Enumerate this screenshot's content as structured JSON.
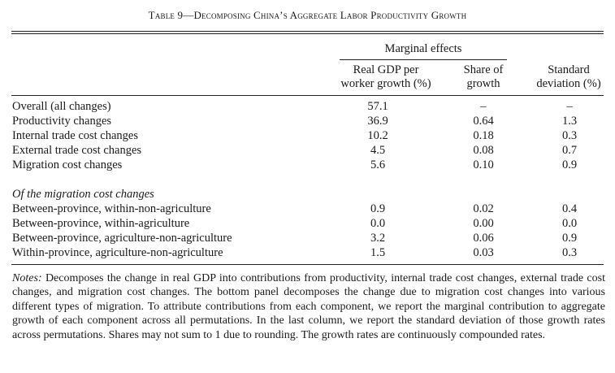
{
  "table": {
    "title": "Table 9—Decomposing China’s Aggregate Labor Productivity Growth",
    "group_header": "Marginal effects",
    "columns": {
      "col1": [
        "Real GDP per",
        "worker growth (%)"
      ],
      "col2": [
        "Share of",
        "growth"
      ],
      "col3": [
        "Standard",
        "deviation (%)"
      ]
    },
    "top_panel": [
      {
        "label": "Overall (all changes)",
        "gdp": "57.1",
        "share": "–",
        "sd": "–"
      },
      {
        "label": "Productivity changes",
        "gdp": "36.9",
        "share": "0.64",
        "sd": "1.3"
      },
      {
        "label": "Internal trade cost changes",
        "gdp": "10.2",
        "share": "0.18",
        "sd": "0.3"
      },
      {
        "label": "External trade cost changes",
        "gdp": "4.5",
        "share": "0.08",
        "sd": "0.7"
      },
      {
        "label": "Migration cost changes",
        "gdp": "5.6",
        "share": "0.10",
        "sd": "0.9"
      }
    ],
    "bottom_panel_heading": "Of the migration cost changes",
    "bottom_panel": [
      {
        "label": "Between-province, within-non-agriculture",
        "gdp": "0.9",
        "share": "0.02",
        "sd": "0.4"
      },
      {
        "label": "Between-province, within-agriculture",
        "gdp": "0.0",
        "share": "0.00",
        "sd": "0.0"
      },
      {
        "label": "Between-province, agriculture-non-agriculture",
        "gdp": "3.2",
        "share": "0.06",
        "sd": "0.9"
      },
      {
        "label": "Within-province, agriculture-non-agriculture",
        "gdp": "1.5",
        "share": "0.03",
        "sd": "0.3"
      }
    ],
    "notes_label": "Notes:",
    "notes_text": " Decomposes the change in real GDP into contributions from productivity, internal trade cost changes, external trade cost changes, and migration cost changes. The bottom panel decomposes the change due to migration cost changes into various different types of migration. To attribute contributions from each component, we report the marginal contribution to aggregate growth of each component across all permutations. In the last column, we report the standard deviation of those growth rates across permutations. Shares may not sum to 1 due to rounding. The growth rates are continuously compounded rates."
  }
}
